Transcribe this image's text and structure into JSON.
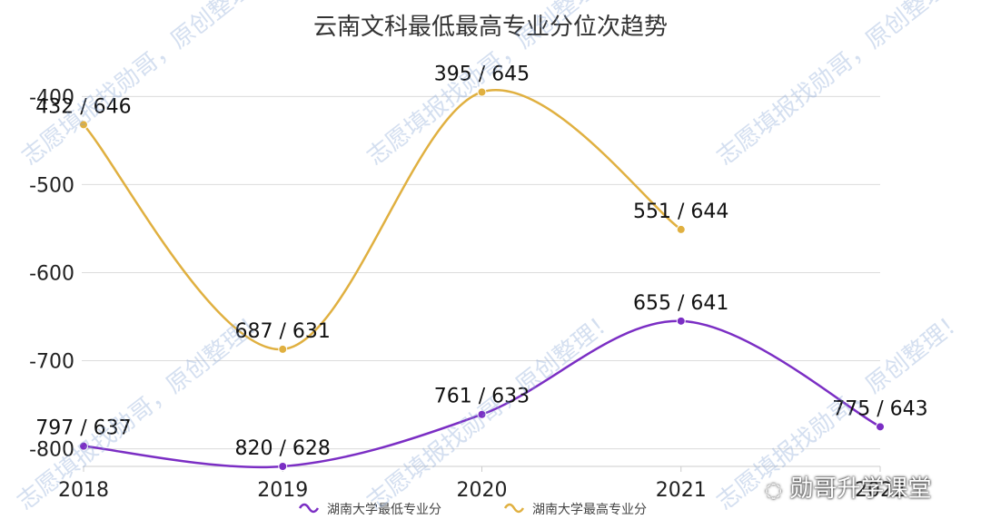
{
  "chart_data": {
    "type": "line",
    "title": "云南文科最低最高专业分位次趋势",
    "x": [
      "2018",
      "2019",
      "2020",
      "2021",
      "2022"
    ],
    "yticks": [
      -400,
      -500,
      -600,
      -700,
      -800
    ],
    "ylim": [
      -820,
      -378
    ],
    "legend_position": "bottom-center",
    "grid": true,
    "series": [
      {
        "name": "湖南大学最低专业分",
        "color": "#7b2ec4",
        "values": [
          -797,
          -820,
          -761,
          -655,
          -775
        ],
        "labels": [
          "797 / 637",
          "820 / 628",
          "761 / 633",
          "655 / 641",
          "775 / 643"
        ]
      },
      {
        "name": "湖南大学最高专业分",
        "color": "#e0b040",
        "values": [
          -432,
          -687,
          -395,
          -551,
          null
        ],
        "labels": [
          "432 / 646",
          "687 / 631",
          "395 / 645",
          "551 / 644",
          null
        ]
      }
    ]
  },
  "watermarks": [
    "志愿填报找勋哥，原创整理！",
    "志愿填报找勋哥，原创整理！",
    "志愿填报找勋哥，原创整理！",
    "志愿填报找勋哥，原创整理！",
    "志愿填报找勋哥，原创整理！",
    "志愿填报找勋哥，原创整理！"
  ],
  "brand_text": "勋哥升学课堂"
}
